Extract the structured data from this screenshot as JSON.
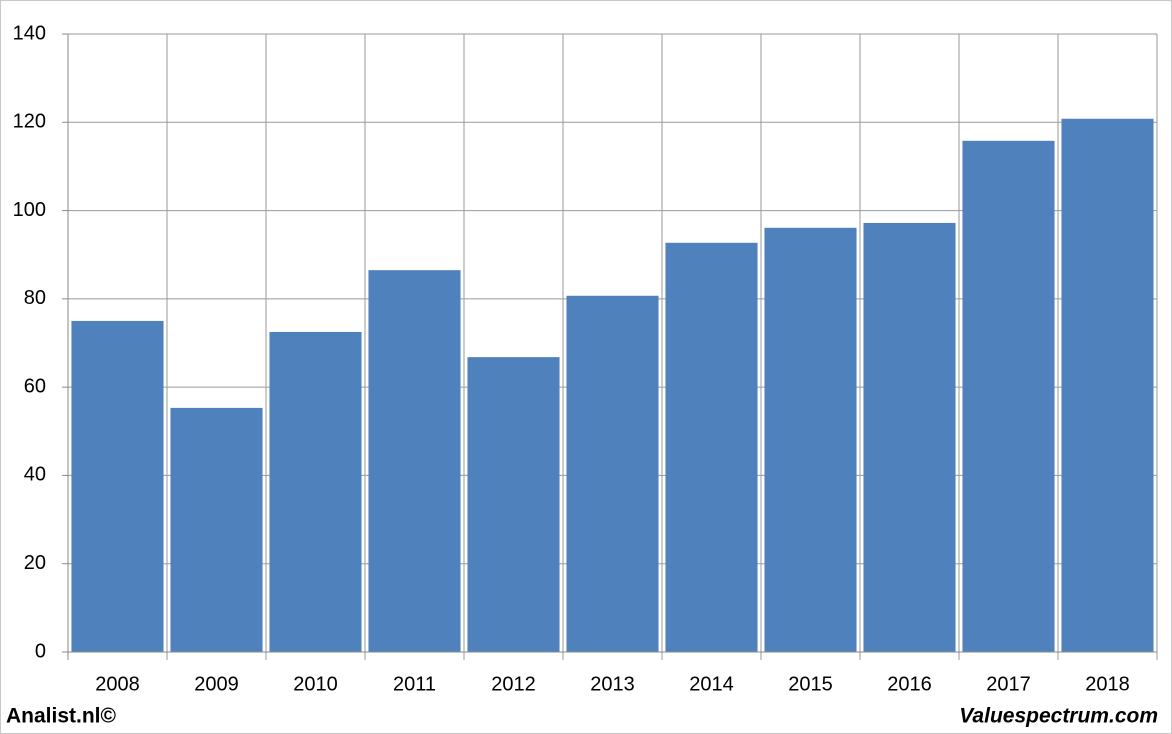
{
  "chart_data": {
    "type": "bar",
    "categories": [
      "2008",
      "2009",
      "2010",
      "2011",
      "2012",
      "2013",
      "2014",
      "2015",
      "2016",
      "2017",
      "2018"
    ],
    "values": [
      75.0,
      55.3,
      72.5,
      86.5,
      66.8,
      80.7,
      92.7,
      96.1,
      97.2,
      115.8,
      120.8
    ],
    "color": "#4f81bd",
    "ylim": [
      0,
      140
    ],
    "yticks": [
      0,
      20,
      40,
      60,
      80,
      100,
      120,
      140
    ],
    "grid": true,
    "annotations": [
      "Analist.nl©",
      "Valuespectrum.com"
    ]
  }
}
